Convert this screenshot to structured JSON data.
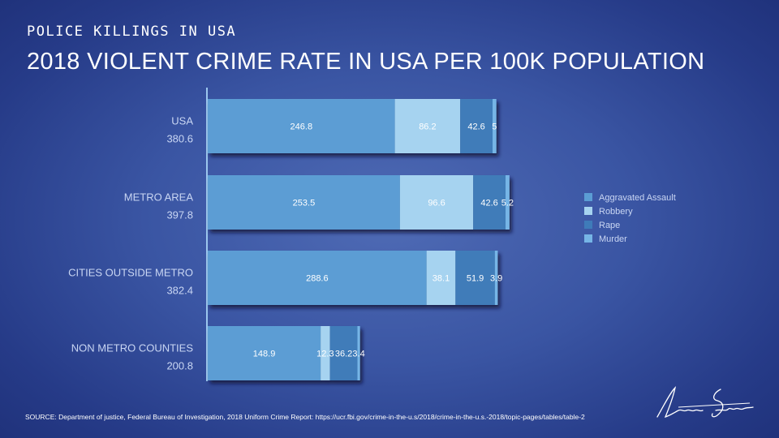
{
  "header": {
    "kicker": "POLICE KILLINGS IN USA",
    "title": "2018 VIOLENT CRIME RATE IN USA PER 100K POPULATION"
  },
  "source": "SOURCE: Department of justice, Federal Bureau of Investigation, 2018 Uniform Crime Report: https://ucr.fbi.gov/crime-in-the-u.s/2018/crime-in-the-u.s.-2018/topic-pages/tables/table-2",
  "signature_text": "Lesa Shirakawa",
  "chart_data": {
    "type": "bar",
    "orientation": "horizontal",
    "stacked": true,
    "title": "2018 VIOLENT CRIME RATE IN USA PER 100K POPULATION",
    "categories": [
      "USA",
      "METRO AREA",
      "CITIES OUTSIDE METRO",
      "NON METRO COUNTIES"
    ],
    "totals": [
      "380.6",
      "397.8",
      "382.4",
      "200.8"
    ],
    "series": [
      {
        "name": "Aggravated Assault",
        "color": "#5b9dd4",
        "values": [
          246.8,
          253.5,
          288.6,
          148.9
        ],
        "labels": [
          "246.8",
          "253.5",
          "288.6",
          "148.9"
        ]
      },
      {
        "name": "Robbery",
        "color": "#a6d3f0",
        "values": [
          86.2,
          96.6,
          38.1,
          12.3
        ],
        "labels": [
          "86.2",
          "96.6",
          "38.1",
          "12.3"
        ]
      },
      {
        "name": "Rape",
        "color": "#3f7bb9",
        "values": [
          42.6,
          42.6,
          51.9,
          36.2
        ],
        "labels": [
          "42.6",
          "42.6",
          "51.9",
          "36.2"
        ]
      },
      {
        "name": "Murder",
        "color": "#76b5e6",
        "values": [
          5,
          5.2,
          3.9,
          3.4
        ],
        "labels": [
          "5",
          "5.2",
          "3.9",
          "3.4"
        ]
      }
    ],
    "xlim": [
      0,
      420
    ],
    "grid": false,
    "legend": "right"
  }
}
